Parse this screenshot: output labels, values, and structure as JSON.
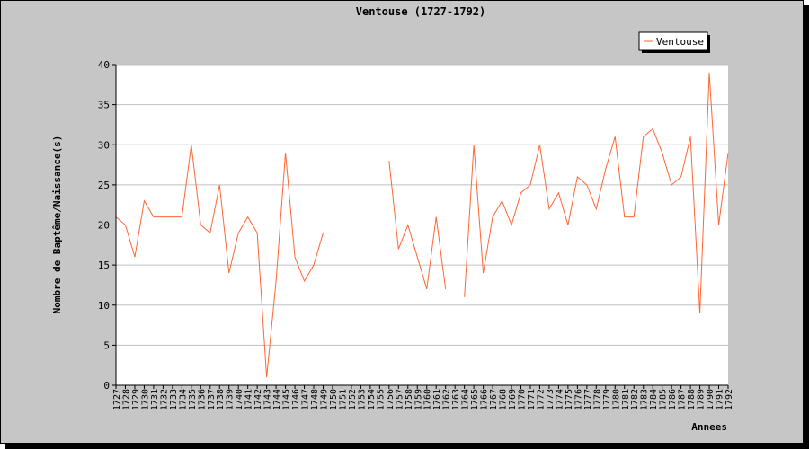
{
  "chart_data": {
    "type": "line",
    "title": "Ventouse (1727-1792)",
    "xlabel": "Annees",
    "ylabel": "Nombre de Baptême/Naissance(s)",
    "ylim": [
      0,
      40
    ],
    "yticks": [
      0,
      5,
      10,
      15,
      20,
      25,
      30,
      35,
      40
    ],
    "grid": true,
    "legend_position": "top-right",
    "series_color": "#ff6633",
    "categories": [
      "1727",
      "1728",
      "1729",
      "1730",
      "1731",
      "1732",
      "1733",
      "1734",
      "1735",
      "1736",
      "1737",
      "1738",
      "1739",
      "1740",
      "1741",
      "1742",
      "1743",
      "1744",
      "1745",
      "1746",
      "1747",
      "1748",
      "1749",
      "1750",
      "1751",
      "1752",
      "1753",
      "1754",
      "1755",
      "1756",
      "1757",
      "1758",
      "1759",
      "1760",
      "1761",
      "1762",
      "1763",
      "1764",
      "1765",
      "1766",
      "1767",
      "1768",
      "1769",
      "1770",
      "1771",
      "1772",
      "1773",
      "1774",
      "1775",
      "1776",
      "1777",
      "1778",
      "1779",
      "1780",
      "1781",
      "1782",
      "1783",
      "1784",
      "1785",
      "1786",
      "1787",
      "1788",
      "1789",
      "1790",
      "1791",
      "1792"
    ],
    "series": [
      {
        "name": "Ventouse",
        "values": [
          21,
          20,
          16,
          23,
          21,
          21,
          21,
          21,
          30,
          20,
          19,
          25,
          14,
          19,
          21,
          19,
          1,
          13,
          29,
          16,
          13,
          15,
          19,
          null,
          null,
          null,
          null,
          null,
          null,
          28,
          17,
          20,
          16,
          12,
          21,
          12,
          null,
          11,
          30,
          14,
          21,
          23,
          20,
          24,
          25,
          30,
          22,
          24,
          20,
          26,
          25,
          22,
          27,
          31,
          21,
          21,
          31,
          32,
          29,
          25,
          26,
          31,
          9,
          39,
          20,
          29
        ]
      }
    ]
  }
}
